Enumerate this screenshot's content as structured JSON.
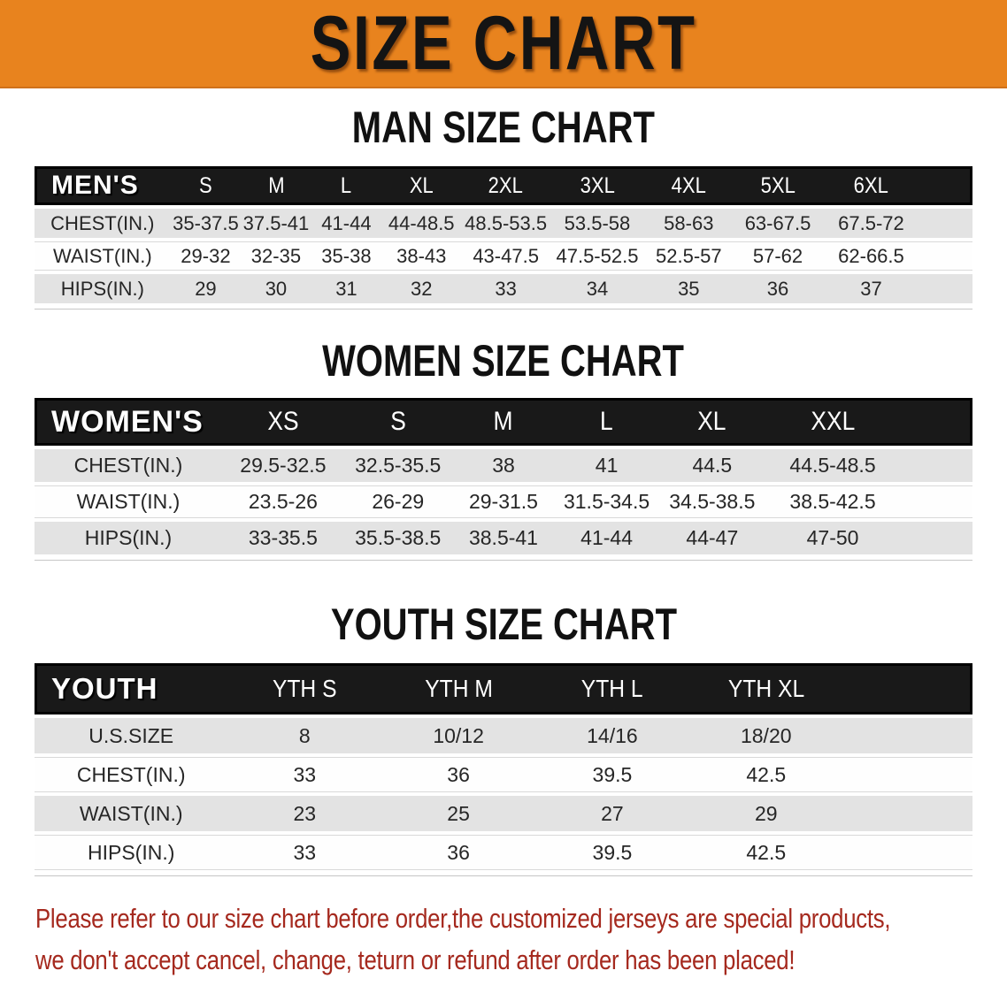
{
  "banner": {
    "title": "SIZE CHART"
  },
  "colors": {
    "banner_orange": "#e8831e",
    "table_header_black": "#191919",
    "row_gray": "#e3e3e3",
    "footer_red": "#a5291e"
  },
  "sections": [
    {
      "heading": "MAN SIZE CHART",
      "table": {
        "label": "MEN'S",
        "columns": [
          "S",
          "M",
          "L",
          "XL",
          "2XL",
          "3XL",
          "4XL",
          "5XL",
          "6XL"
        ],
        "rows": [
          {
            "label": "CHEST(IN.)",
            "values": [
              "35-37.5",
              "37.5-41",
              "41-44",
              "44-48.5",
              "48.5-53.5",
              "53.5-58",
              "58-63",
              "63-67.5",
              "67.5-72"
            ]
          },
          {
            "label": "WAIST(IN.)",
            "values": [
              "29-32",
              "32-35",
              "35-38",
              "38-43",
              "43-47.5",
              "47.5-52.5",
              "52.5-57",
              "57-62",
              "62-66.5"
            ]
          },
          {
            "label": "HIPS(IN.)",
            "values": [
              "29",
              "30",
              "31",
              "32",
              "33",
              "34",
              "35",
              "36",
              "37"
            ]
          }
        ]
      }
    },
    {
      "heading": "WOMEN SIZE CHART",
      "table": {
        "label": "WOMEN'S",
        "columns": [
          "XS",
          "S",
          "M",
          "L",
          "XL",
          "XXL"
        ],
        "rows": [
          {
            "label": "CHEST(IN.)",
            "values": [
              "29.5-32.5",
              "32.5-35.5",
              "38",
              "41",
              "44.5",
              "44.5-48.5"
            ]
          },
          {
            "label": "WAIST(IN.)",
            "values": [
              "23.5-26",
              "26-29",
              "29-31.5",
              "31.5-34.5",
              "34.5-38.5",
              "38.5-42.5"
            ]
          },
          {
            "label": "HIPS(IN.)",
            "values": [
              "33-35.5",
              "35.5-38.5",
              "38.5-41",
              "41-44",
              "44-47",
              "47-50"
            ]
          }
        ]
      }
    },
    {
      "heading": "YOUTH SIZE CHART",
      "table": {
        "label": "YOUTH",
        "columns": [
          "YTH S",
          "YTH M",
          "YTH L",
          "YTH XL"
        ],
        "rows": [
          {
            "label": "U.S.SIZE",
            "values": [
              "8",
              "10/12",
              "14/16",
              "18/20"
            ]
          },
          {
            "label": "CHEST(IN.)",
            "values": [
              "33",
              "36",
              "39.5",
              "42.5"
            ]
          },
          {
            "label": "WAIST(IN.)",
            "values": [
              "23",
              "25",
              "27",
              "29"
            ]
          },
          {
            "label": "HIPS(IN.)",
            "values": [
              "33",
              "36",
              "39.5",
              "42.5"
            ]
          }
        ]
      }
    }
  ],
  "footer": {
    "line1": "Please refer to our size chart before order,the customized jerseys are special products,",
    "line2": "we don't accept cancel, change, teturn or refund after order has been placed!"
  }
}
